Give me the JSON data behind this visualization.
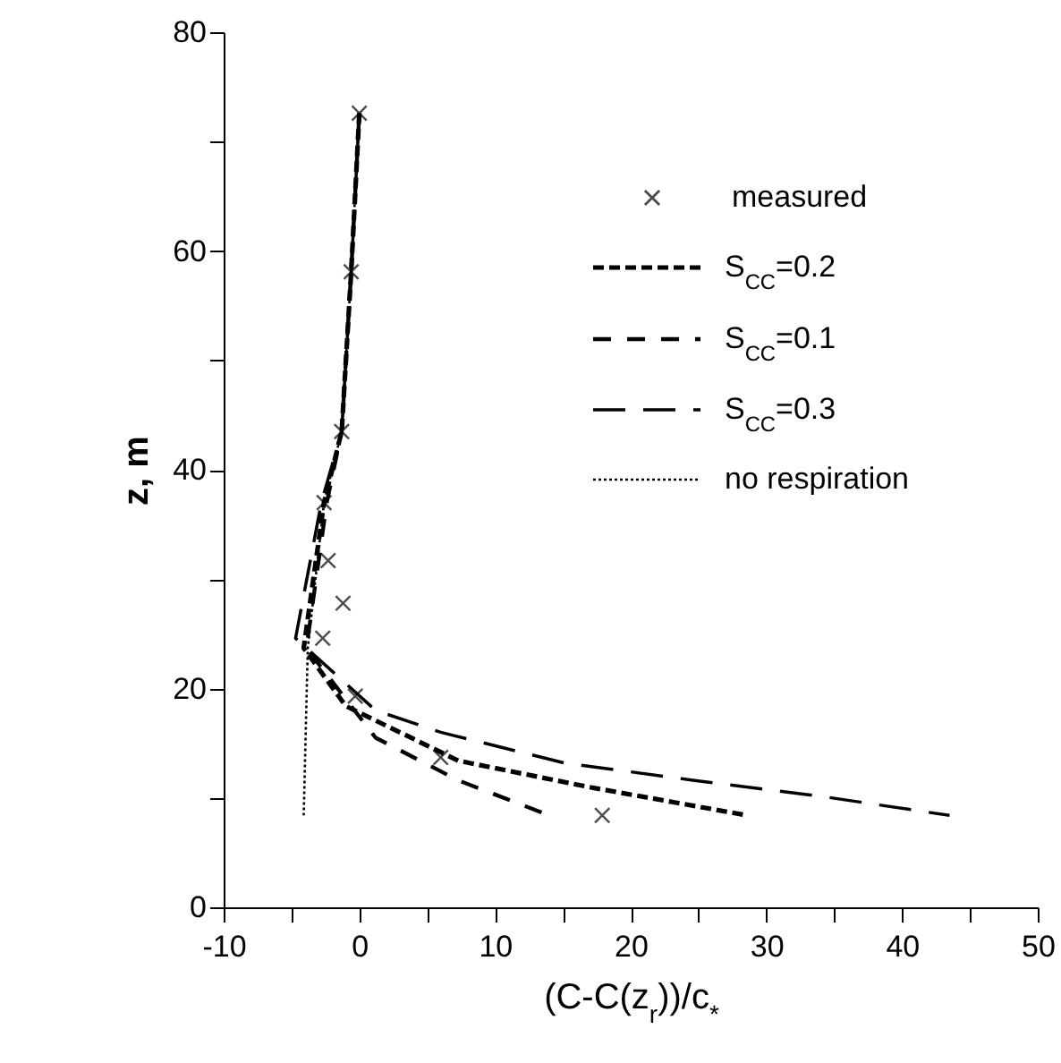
{
  "chart_data": {
    "type": "line",
    "xlabel": "(C-C(z$_{r}$))/c$_{*}$",
    "ylabel": "z, m",
    "xlim": [
      -10,
      50
    ],
    "xticks": [
      -10,
      {
        "value": -5,
        "label": null
      },
      0,
      {
        "value": 5,
        "label": null
      },
      10,
      {
        "value": 15,
        "label": null
      },
      20,
      {
        "value": 25,
        "label": null
      },
      30,
      {
        "value": 35,
        "label": null
      },
      40,
      {
        "value": 45,
        "label": null
      },
      50
    ],
    "ylim": [
      0,
      80
    ],
    "yticks": [
      0,
      {
        "value": 10,
        "label": null
      },
      20,
      {
        "value": 30,
        "label": null
      },
      40,
      {
        "value": 50,
        "label": null
      },
      60,
      {
        "value": 70,
        "label": null
      },
      80
    ],
    "grid": false,
    "legend": "top right",
    "series": [
      {
        "name": "measured",
        "type": "scatter",
        "marker": "cross",
        "color": "#000000",
        "x": [
          0,
          -0.6,
          -1.3,
          -2.6,
          -2.3,
          -1.2,
          -2.7,
          -0.3,
          6.0,
          17.9
        ],
        "values": [
          72.6,
          58.1,
          43.5,
          37.0,
          31.7,
          27.8,
          24.6,
          19.3,
          13.7,
          8.4
        ]
      },
      {
        "name": "S$_{CC}$=0.2",
        "line_style": "dashed",
        "color": "#000000",
        "x": [
          0,
          -0.6,
          -1.3,
          -2.6,
          -4.1,
          -1.0,
          7.3,
          16.9,
          28.6
        ],
        "values": [
          72.6,
          58.1,
          43.5,
          37.0,
          23.7,
          18.4,
          13.4,
          11.0,
          8.4
        ]
      },
      {
        "name": "S$_{CC}$=0.1",
        "line_style": "dashed",
        "color": "#000000",
        "x": [
          0,
          -0.6,
          -1.3,
          -2.4,
          -3.9,
          1.2,
          7.3,
          13.8
        ],
        "values": [
          72.6,
          58.1,
          43.5,
          37.0,
          23.7,
          15.5,
          11.6,
          8.5
        ]
      },
      {
        "name": "S$_{CC}$=0.3",
        "line_style": "dashed",
        "color": "#000000",
        "x": [
          0,
          -0.6,
          -1.3,
          -2.8,
          -4.7,
          1.2,
          6.0,
          15.1,
          24.7,
          34.3,
          43.5
        ],
        "values": [
          72.6,
          58.1,
          43.5,
          37.0,
          24.6,
          18.0,
          16.0,
          13.2,
          11.6,
          10.1,
          8.4
        ]
      },
      {
        "name": "no respiration",
        "line_style": "dotted",
        "color": "#000000",
        "x": [
          0,
          -0.6,
          -1.3,
          -2.6,
          -3.8,
          -4.1
        ],
        "values": [
          72.6,
          58.1,
          43.5,
          37.0,
          23.7,
          8.4
        ]
      }
    ]
  }
}
